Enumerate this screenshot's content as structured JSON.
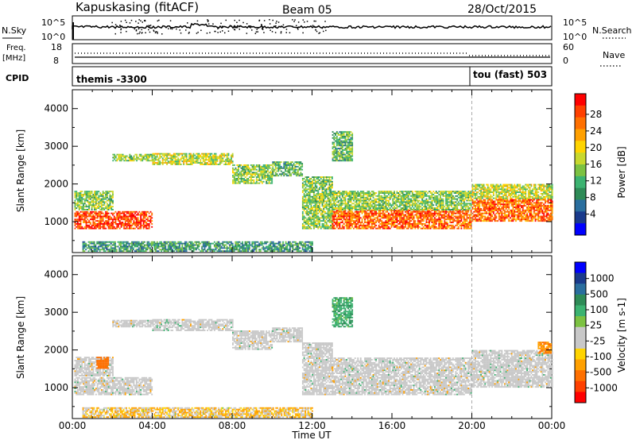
{
  "header": {
    "station": "Kapuskasing (fitACF)",
    "beam": "Beam 05",
    "date": "28/Oct/2015"
  },
  "top_panels": {
    "nsky_label": "N.Sky",
    "nsky_ticks": [
      "10^5",
      "10^0"
    ],
    "nsearch_label": "N.Search",
    "nsearch_ticks": [
      "10^5",
      "10^0"
    ],
    "freq_label": "Freq.",
    "freq_unit": "[MHz]",
    "freq_ticks": [
      "18",
      "8"
    ],
    "nave_label": "Nave",
    "nave_ticks": [
      "60",
      "0"
    ],
    "cpid_label": "CPID",
    "cpid_modes": [
      {
        "text": "themis -3300",
        "start_hour": 0
      },
      {
        "text": "tou (fast) 503",
        "start_hour": 20
      }
    ]
  },
  "chart_data": [
    {
      "type": "heatmap",
      "name": "power",
      "ylabel": "Slant Range [km]",
      "xlabel": "Time UT",
      "xlim_hours": [
        0,
        24
      ],
      "ylim_km": [
        180,
        4500
      ],
      "x_ticks": [
        "00:00",
        "04:00",
        "08:00",
        "12:00",
        "16:00",
        "20:00",
        "00:00"
      ],
      "y_ticks": [
        "1000",
        "2000",
        "3000",
        "4000"
      ],
      "colorbar": {
        "label": "Power [dB]",
        "ticks": [
          "28",
          "24",
          "20",
          "16",
          "12",
          "8",
          "4"
        ],
        "colors": [
          "#0000ff",
          "#1a3a8c",
          "#2a6e9e",
          "#2e8b57",
          "#3cb371",
          "#7cc242",
          "#c8d82e",
          "#ffd400",
          "#ffa000",
          "#ff7000",
          "#ff4000",
          "#ff0000"
        ]
      },
      "regions": [
        {
          "t0": 0.1,
          "t1": 4.0,
          "r0": 800,
          "r1": 1250,
          "v": 26
        },
        {
          "t0": 0.1,
          "t1": 2.0,
          "r0": 1300,
          "r1": 1800,
          "v": 14
        },
        {
          "t0": 2.0,
          "t1": 4.0,
          "r0": 2600,
          "r1": 2800,
          "v": 14
        },
        {
          "t0": 4.0,
          "t1": 8.0,
          "r0": 2500,
          "r1": 2800,
          "v": 16
        },
        {
          "t0": 8.0,
          "t1": 10.0,
          "r0": 2000,
          "r1": 2500,
          "v": 14
        },
        {
          "t0": 10.0,
          "t1": 11.5,
          "r0": 2200,
          "r1": 2600,
          "v": 12
        },
        {
          "t0": 11.5,
          "t1": 13.0,
          "r0": 800,
          "r1": 2200,
          "v": 14
        },
        {
          "t0": 13.0,
          "t1": 20.0,
          "r0": 800,
          "r1": 1300,
          "v": 24
        },
        {
          "t0": 13.0,
          "t1": 20.0,
          "r0": 1300,
          "r1": 1800,
          "v": 14
        },
        {
          "t0": 20.0,
          "t1": 24.0,
          "r0": 1000,
          "r1": 1600,
          "v": 24
        },
        {
          "t0": 20.0,
          "t1": 24.0,
          "r0": 1600,
          "r1": 2000,
          "v": 16
        },
        {
          "t0": 13.0,
          "t1": 14.0,
          "r0": 2600,
          "r1": 3400,
          "v": 12
        },
        {
          "t0": 0.5,
          "t1": 12.0,
          "r0": 200,
          "r1": 450,
          "v": 10
        }
      ]
    },
    {
      "type": "heatmap",
      "name": "velocity",
      "ylabel": "Slant Range [km]",
      "xlabel": "Time UT",
      "xlim_hours": [
        0,
        24
      ],
      "ylim_km": [
        180,
        4500
      ],
      "x_ticks": [
        "00:00",
        "04:00",
        "08:00",
        "12:00",
        "16:00",
        "20:00",
        "00:00"
      ],
      "y_ticks": [
        "1000",
        "2000",
        "3000",
        "4000"
      ],
      "colorbar": {
        "label": "Velocity [m s-1]",
        "ticks": [
          "1000",
          "500",
          "100",
          "25",
          "-25",
          "-100",
          "-500",
          "-1000"
        ],
        "colors": [
          "#0000ff",
          "#1a3a8c",
          "#2a6e9e",
          "#2e8b57",
          "#3cb371",
          "#7cc242",
          "#c8c8c8",
          "#c8c8c8",
          "#ffd400",
          "#ffa000",
          "#ff7000",
          "#ff4000",
          "#ff0000"
        ]
      },
      "regions": [
        {
          "t0": 0.1,
          "t1": 4.0,
          "r0": 800,
          "r1": 1250,
          "v": 0
        },
        {
          "t0": 0.1,
          "t1": 2.0,
          "r0": 1300,
          "r1": 1800,
          "v": 0
        },
        {
          "t0": 1.2,
          "t1": 1.8,
          "r0": 1500,
          "r1": 1800,
          "v": -300
        },
        {
          "t0": 2.0,
          "t1": 4.0,
          "r0": 2600,
          "r1": 2800,
          "v": 0
        },
        {
          "t0": 4.0,
          "t1": 8.0,
          "r0": 2500,
          "r1": 2800,
          "v": 0
        },
        {
          "t0": 8.0,
          "t1": 10.0,
          "r0": 2000,
          "r1": 2500,
          "v": 0
        },
        {
          "t0": 10.0,
          "t1": 11.5,
          "r0": 2200,
          "r1": 2600,
          "v": 0
        },
        {
          "t0": 11.5,
          "t1": 13.0,
          "r0": 800,
          "r1": 2200,
          "v": 0
        },
        {
          "t0": 13.0,
          "t1": 20.0,
          "r0": 800,
          "r1": 1800,
          "v": 0
        },
        {
          "t0": 20.0,
          "t1": 24.0,
          "r0": 1000,
          "r1": 2000,
          "v": 0
        },
        {
          "t0": 23.3,
          "t1": 24.0,
          "r0": 1900,
          "r1": 2200,
          "v": -200
        },
        {
          "t0": 13.0,
          "t1": 14.0,
          "r0": 2600,
          "r1": 3400,
          "v": 150
        },
        {
          "t0": 0.5,
          "t1": 12.0,
          "r0": 200,
          "r1": 450,
          "v": -60
        }
      ]
    }
  ]
}
